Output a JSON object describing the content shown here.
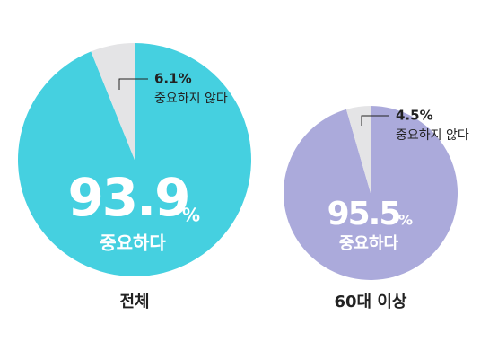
{
  "chart_data": [
    {
      "type": "pie",
      "title": "전체",
      "categories": [
        "중요하다",
        "중요하지 않다"
      ],
      "values": [
        93.9,
        6.1
      ],
      "value_labels": [
        "93.9",
        "6.1%"
      ],
      "unit": "%",
      "colors": [
        "#45d0e0",
        "#e4e4e6"
      ]
    },
    {
      "type": "pie",
      "title": "60대 이상",
      "categories": [
        "중요하다",
        "중요하지 않다"
      ],
      "values": [
        95.5,
        4.5
      ],
      "value_labels": [
        "95.5",
        "4.5%"
      ],
      "unit": "%",
      "colors": [
        "#abaadb",
        "#e4e4e6"
      ]
    }
  ]
}
